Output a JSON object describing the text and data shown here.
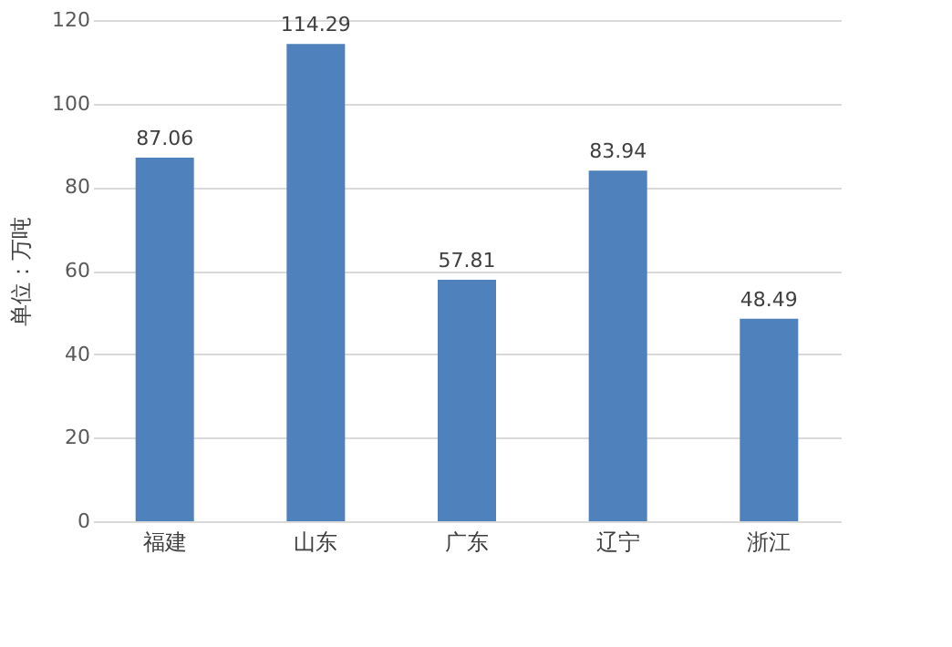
{
  "chart_data": {
    "type": "bar",
    "categories": [
      "福建",
      "山东",
      "广东",
      "辽宁",
      "浙江"
    ],
    "values": [
      87.06,
      114.29,
      57.81,
      83.94,
      48.49
    ],
    "color": "#4f81bd",
    "ylabel": "单位：万吨",
    "ylim": [
      0,
      120
    ],
    "yticks": [
      0,
      20,
      40,
      60,
      80,
      100,
      120
    ],
    "grid": "y",
    "data_labels": true
  }
}
